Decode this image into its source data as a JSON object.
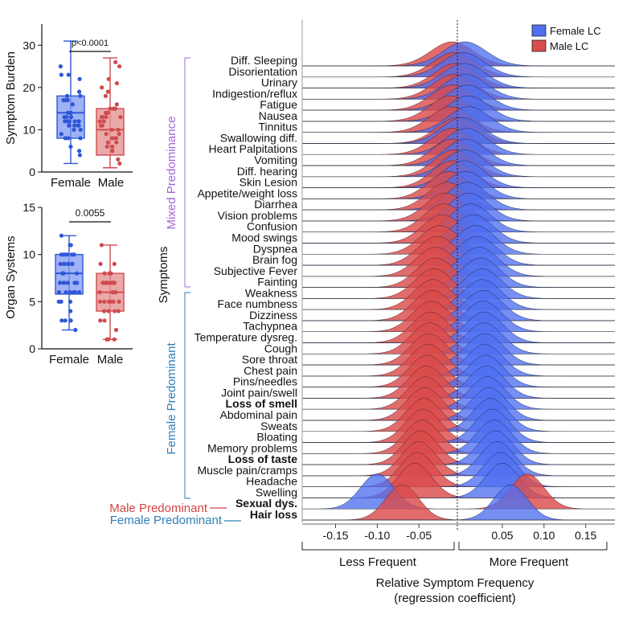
{
  "chart_data": [
    {
      "type": "box",
      "ylabel": "Symptom Burden",
      "ylim": [
        0,
        35
      ],
      "yticks": [
        0,
        10,
        20,
        30
      ],
      "categories": [
        "Female",
        "Male"
      ],
      "significance": "p<0.0001",
      "boxes": [
        {
          "name": "Female",
          "color": "#2f57d6",
          "min": 2,
          "q1": 8,
          "median": 14,
          "q3": 18,
          "max": 31
        },
        {
          "name": "Male",
          "color": "#cf4b4f",
          "min": 1,
          "q1": 4,
          "median": 10,
          "q3": 15,
          "max": 27
        }
      ]
    },
    {
      "type": "box",
      "ylabel": "Organ Systems",
      "ylim": [
        0,
        15
      ],
      "yticks": [
        0,
        5,
        10,
        15
      ],
      "categories": [
        "Female",
        "Male"
      ],
      "significance": "0.0055",
      "boxes": [
        {
          "name": "Female",
          "color": "#2f57d6",
          "min": 2,
          "q1": 5.8,
          "median": 8,
          "q3": 10,
          "max": 12
        },
        {
          "name": "Male",
          "color": "#cf4b4f",
          "min": 1,
          "q1": 4,
          "median": 6,
          "q3": 8,
          "max": 11
        }
      ]
    },
    {
      "type": "ridgeline",
      "ylabel": "Symptoms",
      "xlabel": "Relative Symptom Frequency",
      "xlabel_sub": "(regression coefficient)",
      "xlim": [
        -0.19,
        0.185
      ],
      "xticks": [
        -0.15,
        -0.1,
        -0.05,
        0.05,
        0.1,
        0.15
      ],
      "xtick_labels": [
        "-0.15",
        "-0.10",
        "-0.05",
        "0.05",
        "0.10",
        "0.15"
      ],
      "legend": [
        {
          "label": "Female LC",
          "color": "#4f6ff0"
        },
        {
          "label": "Male LC",
          "color": "#d94c4c"
        }
      ],
      "direction_labels": {
        "less": "Less Frequent",
        "more": "More Frequent"
      },
      "groups": [
        {
          "label": "Mixed Predominance",
          "color": "#a366d6",
          "from": "Diff. Sleeping",
          "to": "Fainting"
        },
        {
          "label": "Female Predominant",
          "color": "#2f7fb8",
          "from": "Weakness",
          "to": "Swelling"
        }
      ],
      "side_labels": [
        {
          "label": "Male Predominant",
          "color": "#d14545",
          "symptom": "Sexual dys."
        },
        {
          "label": "Female Predominant",
          "color": "#2f7fb8",
          "symptom": "Hair loss"
        }
      ],
      "symptoms": [
        {
          "name": "Diff. Sleeping",
          "female": 0.005,
          "male": -0.01,
          "bold": false
        },
        {
          "name": "Disorientation",
          "female": 0.003,
          "male": -0.008,
          "bold": false
        },
        {
          "name": "Urinary",
          "female": 0.004,
          "male": -0.006,
          "bold": false
        },
        {
          "name": "Indigestion/reflux",
          "female": 0.006,
          "male": -0.008,
          "bold": false
        },
        {
          "name": "Fatigue",
          "female": 0.008,
          "male": -0.01,
          "bold": false
        },
        {
          "name": "Nausea",
          "female": 0.009,
          "male": -0.012,
          "bold": false
        },
        {
          "name": "Tinnitus",
          "female": 0.01,
          "male": -0.012,
          "bold": false
        },
        {
          "name": "Swallowing diff.",
          "female": 0.002,
          "male": -0.004,
          "bold": false
        },
        {
          "name": "Heart Palpitations",
          "female": 0.007,
          "male": -0.01,
          "bold": false
        },
        {
          "name": "Vomiting",
          "female": 0.006,
          "male": -0.01,
          "bold": false
        },
        {
          "name": "Diff. hearing",
          "female": 0.005,
          "male": -0.008,
          "bold": false
        },
        {
          "name": "Skin Lesion",
          "female": 0.004,
          "male": -0.01,
          "bold": false
        },
        {
          "name": "Appetite/weight loss",
          "female": 0.006,
          "male": -0.014,
          "bold": false
        },
        {
          "name": "Diarrhea",
          "female": 0.008,
          "male": -0.016,
          "bold": false
        },
        {
          "name": "Vision problems",
          "female": 0.01,
          "male": -0.018,
          "bold": false
        },
        {
          "name": "Confusion",
          "female": 0.012,
          "male": -0.02,
          "bold": false
        },
        {
          "name": "Mood swings",
          "female": 0.015,
          "male": -0.022,
          "bold": false
        },
        {
          "name": "Dyspnea",
          "female": 0.018,
          "male": -0.025,
          "bold": false
        },
        {
          "name": "Brain fog",
          "female": 0.02,
          "male": -0.028,
          "bold": false
        },
        {
          "name": "Subjective Fever",
          "female": 0.022,
          "male": -0.03,
          "bold": false
        },
        {
          "name": "Fainting",
          "female": 0.024,
          "male": -0.03,
          "bold": false
        },
        {
          "name": "Weakness",
          "female": 0.026,
          "male": -0.032,
          "bold": false
        },
        {
          "name": "Face numbness",
          "female": 0.026,
          "male": -0.033,
          "bold": false
        },
        {
          "name": "Dizziness",
          "female": 0.027,
          "male": -0.034,
          "bold": false
        },
        {
          "name": "Tachypnea",
          "female": 0.027,
          "male": -0.035,
          "bold": false
        },
        {
          "name": "Temperature dysreg.",
          "female": 0.028,
          "male": -0.036,
          "bold": false
        },
        {
          "name": "Cough",
          "female": 0.028,
          "male": -0.037,
          "bold": false
        },
        {
          "name": "Sore throat",
          "female": 0.029,
          "male": -0.038,
          "bold": false
        },
        {
          "name": "Chest pain",
          "female": 0.029,
          "male": -0.039,
          "bold": false
        },
        {
          "name": "Pins/needles",
          "female": 0.03,
          "male": -0.04,
          "bold": false
        },
        {
          "name": "Joint pain/swell",
          "female": 0.031,
          "male": -0.041,
          "bold": false
        },
        {
          "name": "Loss of smell",
          "female": 0.032,
          "male": -0.042,
          "bold": true
        },
        {
          "name": "Abdominal pain",
          "female": 0.034,
          "male": -0.043,
          "bold": false
        },
        {
          "name": "Sweats",
          "female": 0.036,
          "male": -0.044,
          "bold": false
        },
        {
          "name": "Bloating",
          "female": 0.038,
          "male": -0.045,
          "bold": false
        },
        {
          "name": "Memory problems",
          "female": 0.04,
          "male": -0.046,
          "bold": false
        },
        {
          "name": "Loss of taste",
          "female": 0.042,
          "male": -0.048,
          "bold": true
        },
        {
          "name": "Muscle pain/cramps",
          "female": 0.044,
          "male": -0.05,
          "bold": false
        },
        {
          "name": "Headache",
          "female": 0.048,
          "male": -0.052,
          "bold": false
        },
        {
          "name": "Swelling",
          "female": 0.05,
          "male": -0.055,
          "bold": false
        },
        {
          "name": "Sexual dys.",
          "female": -0.1,
          "male": 0.08,
          "bold": true
        },
        {
          "name": "Hair loss",
          "female": 0.06,
          "male": -0.07,
          "bold": true
        }
      ]
    }
  ]
}
